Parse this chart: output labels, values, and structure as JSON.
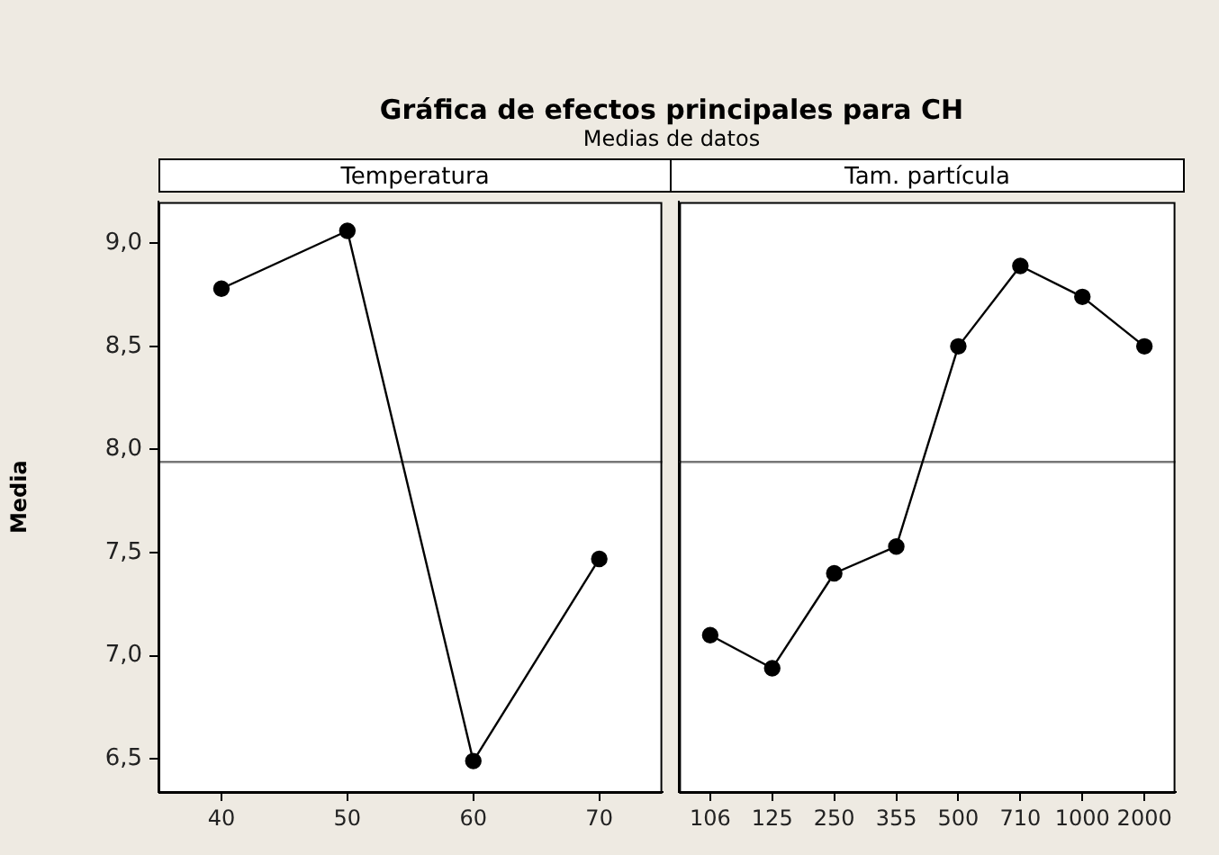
{
  "chart_data": [
    {
      "type": "line",
      "title": "Gráfica de efectos principales para CH",
      "subtitle": "Medias de datos",
      "xlabel": "Temperatura",
      "ylabel": "Media",
      "categories": [
        "40",
        "50",
        "60",
        "70"
      ],
      "values": [
        8.78,
        9.06,
        6.49,
        7.47
      ],
      "color": "#000000",
      "ylim": [
        6.34,
        9.2
      ],
      "yticks": [
        {
          "value": 6.5,
          "label": "6,5"
        },
        {
          "value": 7,
          "label": "7,0"
        },
        {
          "value": 7.5,
          "label": "7,5"
        },
        {
          "value": 8,
          "label": "8,0"
        },
        {
          "value": 8.5,
          "label": "8,5"
        },
        {
          "value": 9,
          "label": "9,0"
        }
      ],
      "ref_lines": [
        {
          "axis": "y",
          "value": 7.94,
          "color": "#777777"
        }
      ],
      "marker": "circle",
      "grid": false,
      "legend": false
    },
    {
      "type": "line",
      "xlabel": "Tam. partícula",
      "categories": [
        "106",
        "125",
        "250",
        "355",
        "500",
        "710",
        "1000",
        "2000"
      ],
      "values": [
        7.1,
        6.94,
        7.4,
        7.53,
        8.5,
        8.89,
        8.74,
        8.5
      ],
      "color": "#000000",
      "ylim": [
        6.34,
        9.2
      ],
      "tick_labels": "x",
      "ref_lines": [
        {
          "axis": "y",
          "value": 7.94,
          "color": "#777777"
        }
      ],
      "marker": "circle",
      "grid": false,
      "legend": false
    }
  ]
}
